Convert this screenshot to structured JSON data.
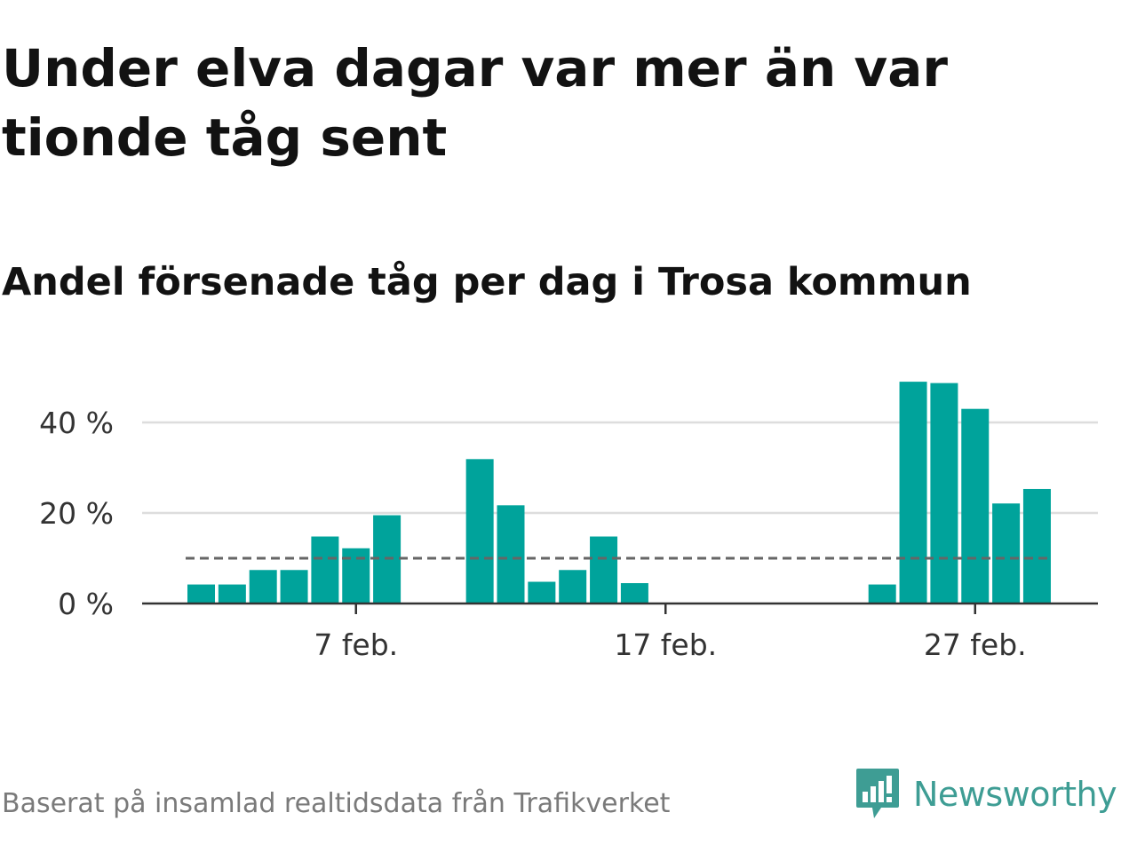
{
  "title": "Under elva dagar var mer än var tionde tåg sent",
  "subtitle": "Andel försenade tåg per dag i Trosa kommun",
  "source": "Baserat på insamlad realtidsdata från Trafikverket",
  "brand": {
    "name": "Newsworthy",
    "logo_icon": "newsworthy-logo-icon",
    "color": "#3e9d94"
  },
  "chart_data": {
    "type": "bar",
    "categories": [
      "2 feb.",
      "3 feb.",
      "4 feb.",
      "5 feb.",
      "6 feb.",
      "7 feb.",
      "8 feb.",
      "9 feb.",
      "10 feb.",
      "11 feb.",
      "12 feb.",
      "13 feb.",
      "14 feb.",
      "15 feb.",
      "16 feb.",
      "17 feb.",
      "18 feb.",
      "19 feb.",
      "20 feb.",
      "21 feb.",
      "22 feb.",
      "23 feb.",
      "24 feb.",
      "25 feb.",
      "26 feb.",
      "27 feb.",
      "28 feb.",
      "29 feb."
    ],
    "values": [
      4.2,
      4.2,
      7.4,
      7.4,
      14.8,
      12.2,
      19.5,
      0,
      0,
      31.9,
      21.7,
      4.8,
      7.4,
      14.8,
      4.5,
      0,
      0,
      0,
      0,
      0,
      0,
      0,
      4.2,
      49.0,
      48.7,
      43.0,
      22.1,
      25.3
    ],
    "reference_line": 10,
    "ylim": [
      0,
      50
    ],
    "yticks": [
      0,
      20,
      40
    ],
    "ytick_labels": [
      "0 %",
      "20 %",
      "40 %"
    ],
    "xtick_labels": [
      {
        "category": "7 feb.",
        "label": "7 feb."
      },
      {
        "category": "17 feb.",
        "label": "17 feb."
      },
      {
        "category": "27 feb.",
        "label": "27 feb."
      }
    ],
    "grid": true,
    "colors": {
      "bar": "#00a39b",
      "reference": "#666666",
      "grid": "#dddddd",
      "axis": "#333333"
    }
  }
}
